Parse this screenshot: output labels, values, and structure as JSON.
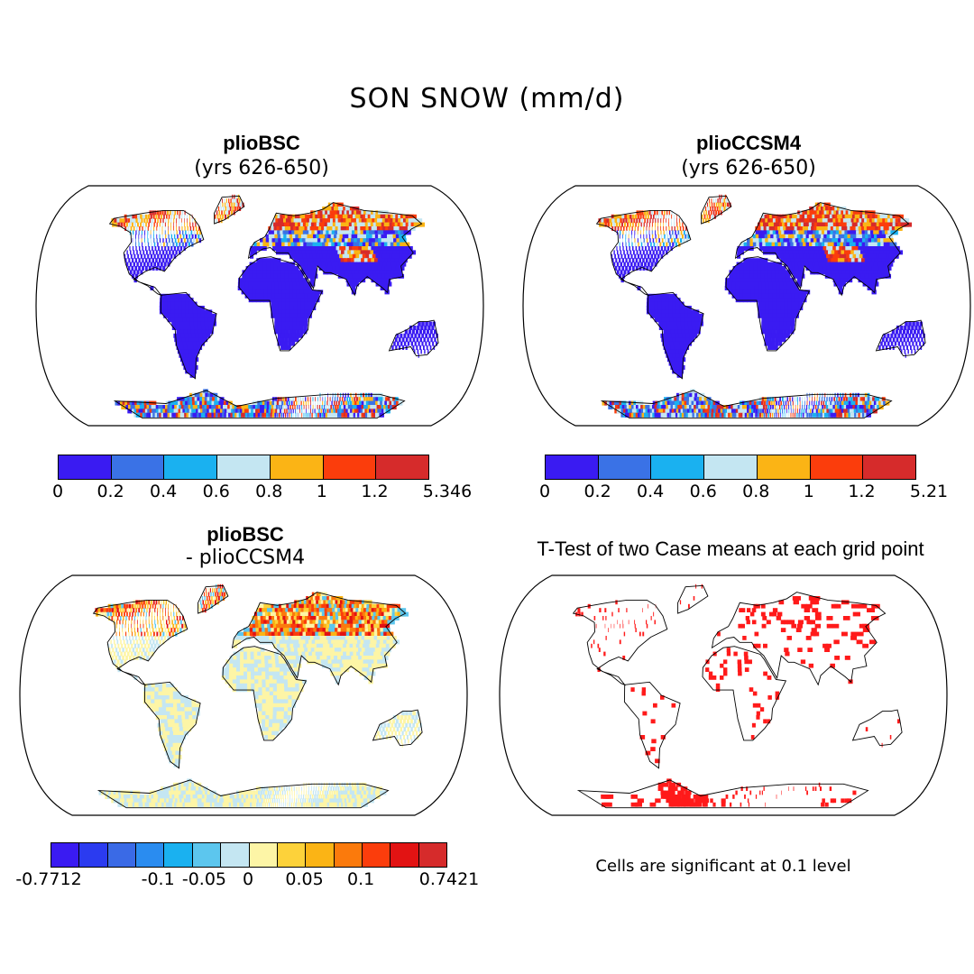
{
  "title": "SON SNOW (mm/d)",
  "panels": [
    {
      "title": "plioBSC",
      "subtitle": "(yrs 626-650)"
    },
    {
      "title": "plioCCSM4",
      "subtitle": "(yrs 626-650)"
    },
    {
      "title": "plioBSC",
      "subtitle": "- plioCCSM4"
    },
    {
      "title": "T-Test of two Case means at each grid point",
      "subtitle": ""
    }
  ],
  "colorbar_snow_1": {
    "colors": [
      "#3a1bf2",
      "#3a72e6",
      "#1ab1f0",
      "#c4e6f2",
      "#fbb415",
      "#fb3d0c",
      "#d62b2b"
    ],
    "labels": [
      "0",
      "0.2",
      "0.4",
      "0.6",
      "0.8",
      "1",
      "1.2",
      "5.346"
    ]
  },
  "colorbar_snow_2": {
    "colors": [
      "#3a1bf2",
      "#3a72e6",
      "#1ab1f0",
      "#c4e6f2",
      "#fbb415",
      "#fb3d0c",
      "#d62b2b"
    ],
    "labels": [
      "0",
      "0.2",
      "0.4",
      "0.6",
      "0.8",
      "1",
      "1.2",
      "5.21"
    ]
  },
  "colorbar_diff": {
    "colors": [
      "#3a1bf2",
      "#2b3bf0",
      "#3a6ae6",
      "#2a8cf0",
      "#1ab1f0",
      "#5cc6ee",
      "#c4e6f2",
      "#fdf5a6",
      "#fdd23a",
      "#fbb415",
      "#fb7a0c",
      "#fb3d0c",
      "#e21313",
      "#d62b2b"
    ],
    "labels": [
      "-0.7712",
      "-0.1",
      "-0.05",
      "0",
      "0.05",
      "0.1",
      "0.7421"
    ]
  },
  "significance_note": "Cells are significant at 0.1 level",
  "colors": {
    "snow_low": "#3a1bf2",
    "diff_base": "#fdf5a6",
    "sig_cell": "#ff1a1a"
  }
}
